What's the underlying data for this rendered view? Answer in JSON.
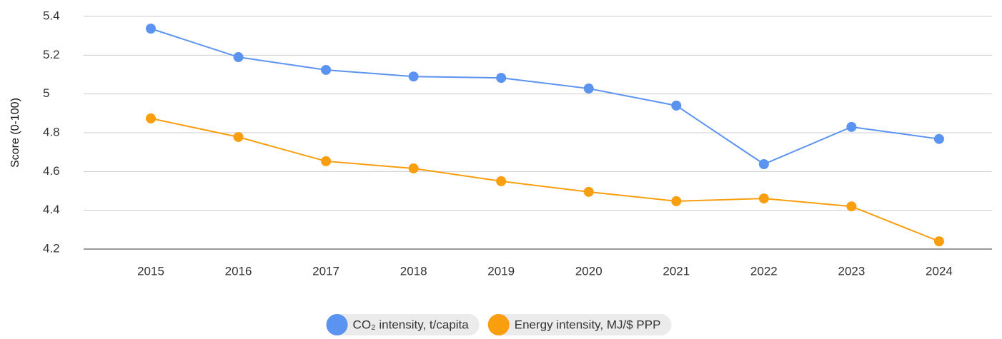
{
  "chart_data": {
    "type": "line",
    "y_label": "Score (0-100)",
    "categories": [
      "2015",
      "2016",
      "2017",
      "2018",
      "2019",
      "2020",
      "2021",
      "2022",
      "2023",
      "2024"
    ],
    "series": [
      {
        "name": "CO₂ intensity, t/capita",
        "color": "#5b93f0",
        "values": [
          5.337,
          5.19,
          5.124,
          5.09,
          5.083,
          5.028,
          4.94,
          4.638,
          4.83,
          4.768
        ]
      },
      {
        "name": "Energy intensity, MJ/$ PPP",
        "color": "#f99e0f",
        "values": [
          4.874,
          4.778,
          4.653,
          4.616,
          4.55,
          4.495,
          4.447,
          4.461,
          4.42,
          4.24
        ]
      }
    ],
    "ylim": [
      4.2,
      5.4
    ],
    "yticks": [
      4.2,
      4.4,
      4.6,
      4.8,
      5,
      5.2,
      5.4
    ],
    "grid": true,
    "legend": "bottom"
  }
}
